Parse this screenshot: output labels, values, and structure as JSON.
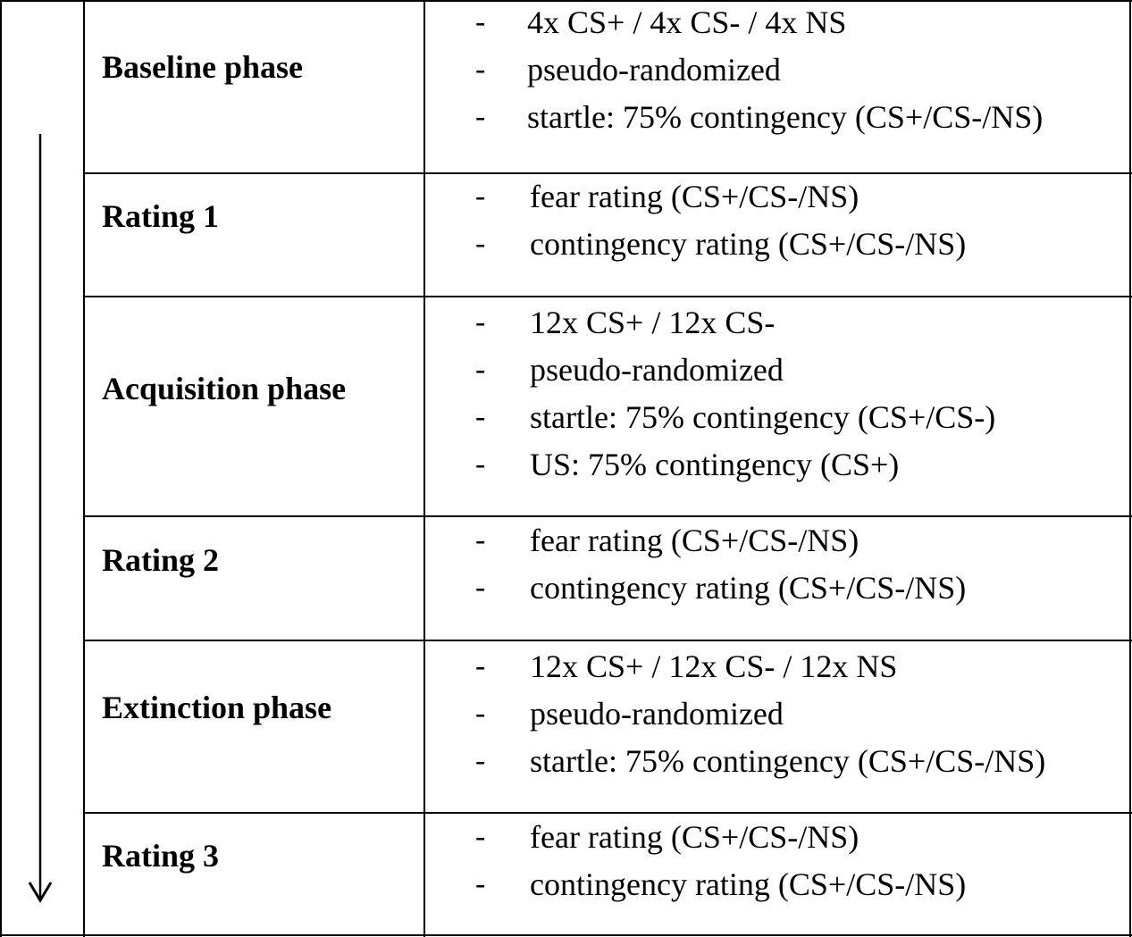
{
  "rows": [
    {
      "label": "Baseline phase",
      "items": [
        "4x CS+ / 4x CS- / 4x NS",
        "pseudo-randomized",
        "startle: 75% contingency (CS+/CS-/NS)"
      ]
    },
    {
      "label": "Rating 1",
      "items": [
        "fear rating (CS+/CS-/NS)",
        "contingency rating (CS+/CS-/NS)"
      ]
    },
    {
      "label": "Acquisition phase",
      "items": [
        "12x CS+ / 12x CS-",
        "pseudo-randomized",
        "startle: 75% contingency (CS+/CS-)",
        "US: 75% contingency (CS+)"
      ]
    },
    {
      "label": "Rating 2",
      "items": [
        "fear rating (CS+/CS-/NS)",
        "contingency rating (CS+/CS-/NS)"
      ]
    },
    {
      "label": "Extinction phase",
      "items": [
        "12x CS+ / 12x CS- / 12x NS",
        "pseudo-randomized",
        "startle: 75% contingency (CS+/CS-/NS)"
      ]
    },
    {
      "label": "Rating 3",
      "items": [
        "fear rating (CS+/CS-/NS)",
        "contingency rating (CS+/CS-/NS)"
      ]
    }
  ],
  "bullet_marker": "-"
}
